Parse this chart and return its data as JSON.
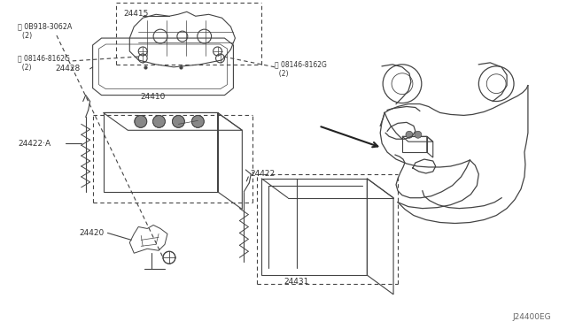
{
  "bg_color": "#ffffff",
  "line_color": "#444444",
  "text_color": "#333333",
  "fig_width": 6.4,
  "fig_height": 3.72,
  "dpi": 100,
  "watermark": "J24400EG",
  "label_24410": "24410",
  "label_24420": "24420",
  "label_24422": "24422",
  "label_24431": "24431",
  "label_24428": "24428",
  "label_24415": "24415",
  "label_24422A": "24422·A",
  "label_bolt1": "Ⓑ 08146-8162G\n  (2)",
  "label_bolt2": "Ⓑ 08146-8162G\n  (2)",
  "label_nut": "Ⓝ 0B918-3062A\n  (2)"
}
